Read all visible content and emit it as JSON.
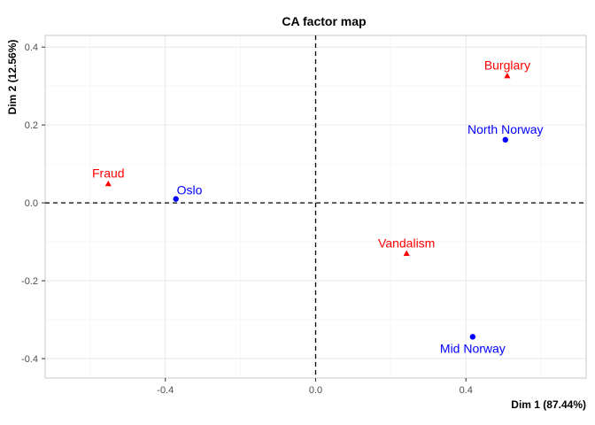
{
  "chart_data": {
    "type": "scatter",
    "title": "CA factor map",
    "xlabel": "Dim 1 (87.44%)",
    "ylabel": "Dim 2 (12.56%)",
    "xlim": [
      -0.72,
      0.72
    ],
    "ylim": [
      -0.45,
      0.43
    ],
    "x_ticks": [
      -0.4,
      0.0,
      0.4
    ],
    "x_tick_labels": [
      "-0.4",
      "0.0",
      "0.4"
    ],
    "y_ticks": [
      -0.4,
      -0.2,
      0.0,
      0.2,
      0.4
    ],
    "y_tick_labels": [
      "-0.4",
      "-0.2",
      "0.0",
      "0.2",
      "0.4"
    ],
    "grid": true,
    "reference_lines": {
      "x": 0,
      "y": 0,
      "style": "dashed"
    },
    "series": [
      {
        "group": "rows",
        "marker": "circle",
        "color": "#0000FF",
        "points": [
          {
            "label": "North Norway",
            "x": 0.505,
            "y": 0.162,
            "label_pos": "above"
          },
          {
            "label": "Oslo",
            "x": -0.372,
            "y": 0.01,
            "label_pos": "above-right"
          },
          {
            "label": "Mid Norway",
            "x": 0.418,
            "y": -0.344,
            "label_pos": "below"
          }
        ]
      },
      {
        "group": "columns",
        "marker": "triangle",
        "color": "#FF0000",
        "points": [
          {
            "label": "Burglary",
            "x": 0.51,
            "y": 0.326,
            "label_pos": "above"
          },
          {
            "label": "Fraud",
            "x": -0.552,
            "y": 0.049,
            "label_pos": "above"
          },
          {
            "label": "Vandalism",
            "x": 0.242,
            "y": -0.13,
            "label_pos": "above"
          }
        ]
      }
    ]
  }
}
